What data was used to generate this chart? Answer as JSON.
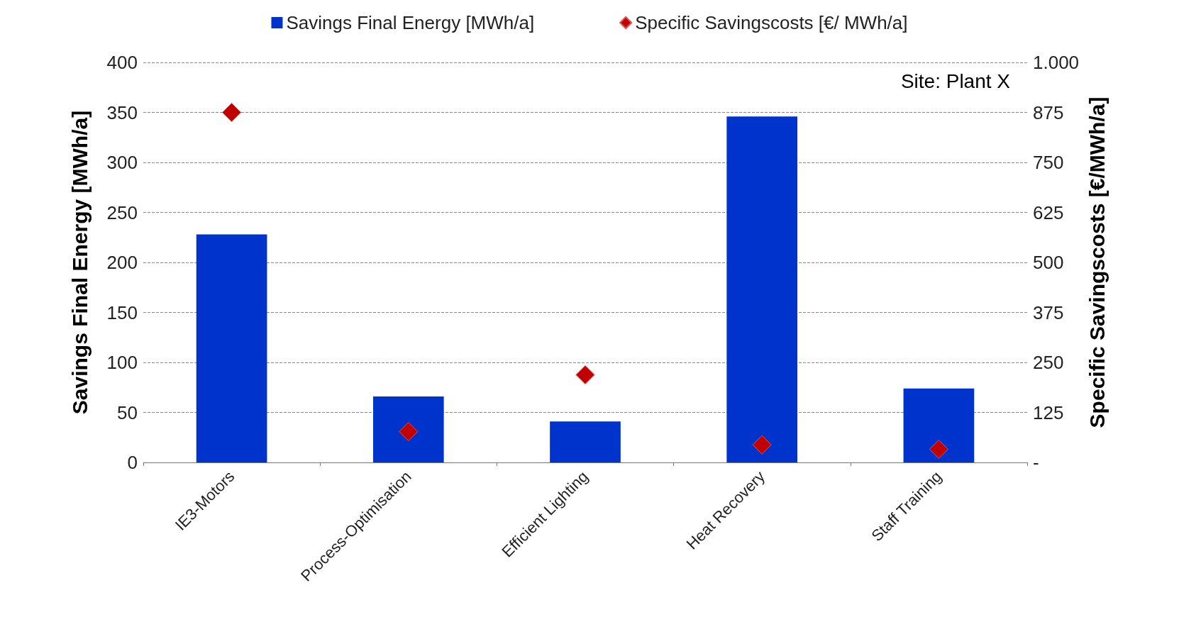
{
  "chart_data": {
    "type": "bar",
    "ylabel": "Savings Final Energy [MWh/a]",
    "y2label": "Specific Savingscosts [€/MWh/a]",
    "categories": [
      "IE3-Motors",
      "Process-Optimisation",
      "Efficient Lighting",
      "Heat Recovery",
      "Staff Training"
    ],
    "series": [
      {
        "name": "Savings Final Energy [MWh/a]",
        "color": "#0033cc",
        "values": [
          228,
          66,
          41,
          346,
          74
        ]
      },
      {
        "name": "Specific Savingscosts [€/ MWh/a]",
        "type": "scatter",
        "axis": "y2",
        "marker": "diamond",
        "color": "#c00000",
        "values": [
          875,
          77,
          219,
          44,
          33
        ]
      }
    ],
    "ylim": [
      0,
      400
    ],
    "yticks": [
      0,
      50,
      100,
      150,
      200,
      250,
      300,
      350,
      400
    ],
    "y2lim": [
      0,
      1000
    ],
    "y2ticks": [
      {
        "value": 0,
        "label": "-"
      },
      125,
      250,
      375,
      500,
      625,
      750,
      875,
      {
        "value": 1000,
        "label": "1.000"
      }
    ],
    "grid": "y",
    "legend": "top",
    "annotations": [
      "Site: Plant X"
    ]
  }
}
